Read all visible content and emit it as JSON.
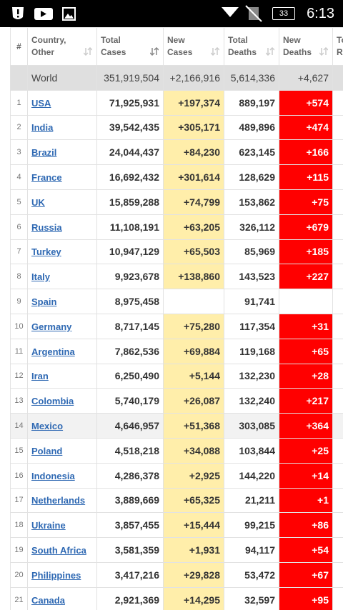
{
  "status_bar": {
    "battery": "33",
    "time": "6:13"
  },
  "table": {
    "headers": [
      [
        "#"
      ],
      [
        "Country,",
        "Other"
      ],
      [
        "Total",
        "Cases"
      ],
      [
        "New",
        "Cases"
      ],
      [
        "Total",
        "Deaths"
      ],
      [
        "New",
        "Deaths"
      ],
      [
        "Total",
        "Recovered"
      ]
    ],
    "world": [
      "World",
      "351,919,504",
      "+2,166,916",
      "5,614,336",
      "+4,627"
    ],
    "rows": [
      [
        "1",
        "USA",
        "71,925,931",
        "+197,374",
        "889,197",
        "+574"
      ],
      [
        "2",
        "India",
        "39,542,435",
        "+305,171",
        "489,896",
        "+474"
      ],
      [
        "3",
        "Brazil",
        "24,044,437",
        "+84,230",
        "623,145",
        "+166"
      ],
      [
        "4",
        "France",
        "16,692,432",
        "+301,614",
        "128,629",
        "+115"
      ],
      [
        "5",
        "UK",
        "15,859,288",
        "+74,799",
        "153,862",
        "+75"
      ],
      [
        "6",
        "Russia",
        "11,108,191",
        "+63,205",
        "326,112",
        "+679"
      ],
      [
        "7",
        "Turkey",
        "10,947,129",
        "+65,503",
        "85,969",
        "+185"
      ],
      [
        "8",
        "Italy",
        "9,923,678",
        "+138,860",
        "143,523",
        "+227"
      ],
      [
        "9",
        "Spain",
        "8,975,458",
        null,
        "91,741",
        null
      ],
      [
        "10",
        "Germany",
        "8,717,145",
        "+75,280",
        "117,354",
        "+31"
      ],
      [
        "11",
        "Argentina",
        "7,862,536",
        "+69,884",
        "119,168",
        "+65"
      ],
      [
        "12",
        "Iran",
        "6,250,490",
        "+5,144",
        "132,230",
        "+28"
      ],
      [
        "13",
        "Colombia",
        "5,740,179",
        "+26,087",
        "132,240",
        "+217"
      ],
      [
        "14",
        "Mexico",
        "4,646,957",
        "+51,368",
        "303,085",
        "+364"
      ],
      [
        "15",
        "Poland",
        "4,518,218",
        "+34,088",
        "103,844",
        "+25"
      ],
      [
        "16",
        "Indonesia",
        "4,286,378",
        "+2,925",
        "144,220",
        "+14"
      ],
      [
        "17",
        "Netherlands",
        "3,889,669",
        "+65,325",
        "21,211",
        "+1"
      ],
      [
        "18",
        "Ukraine",
        "3,857,455",
        "+15,444",
        "99,215",
        "+86"
      ],
      [
        "19",
        "South Africa",
        "3,581,359",
        "+1,931",
        "94,117",
        "+54"
      ],
      [
        "20",
        "Philippines",
        "3,417,216",
        "+29,828",
        "53,472",
        "+67"
      ],
      [
        "21",
        "Canada",
        "2,921,369",
        "+14,295",
        "32,597",
        "+95"
      ]
    ]
  }
}
